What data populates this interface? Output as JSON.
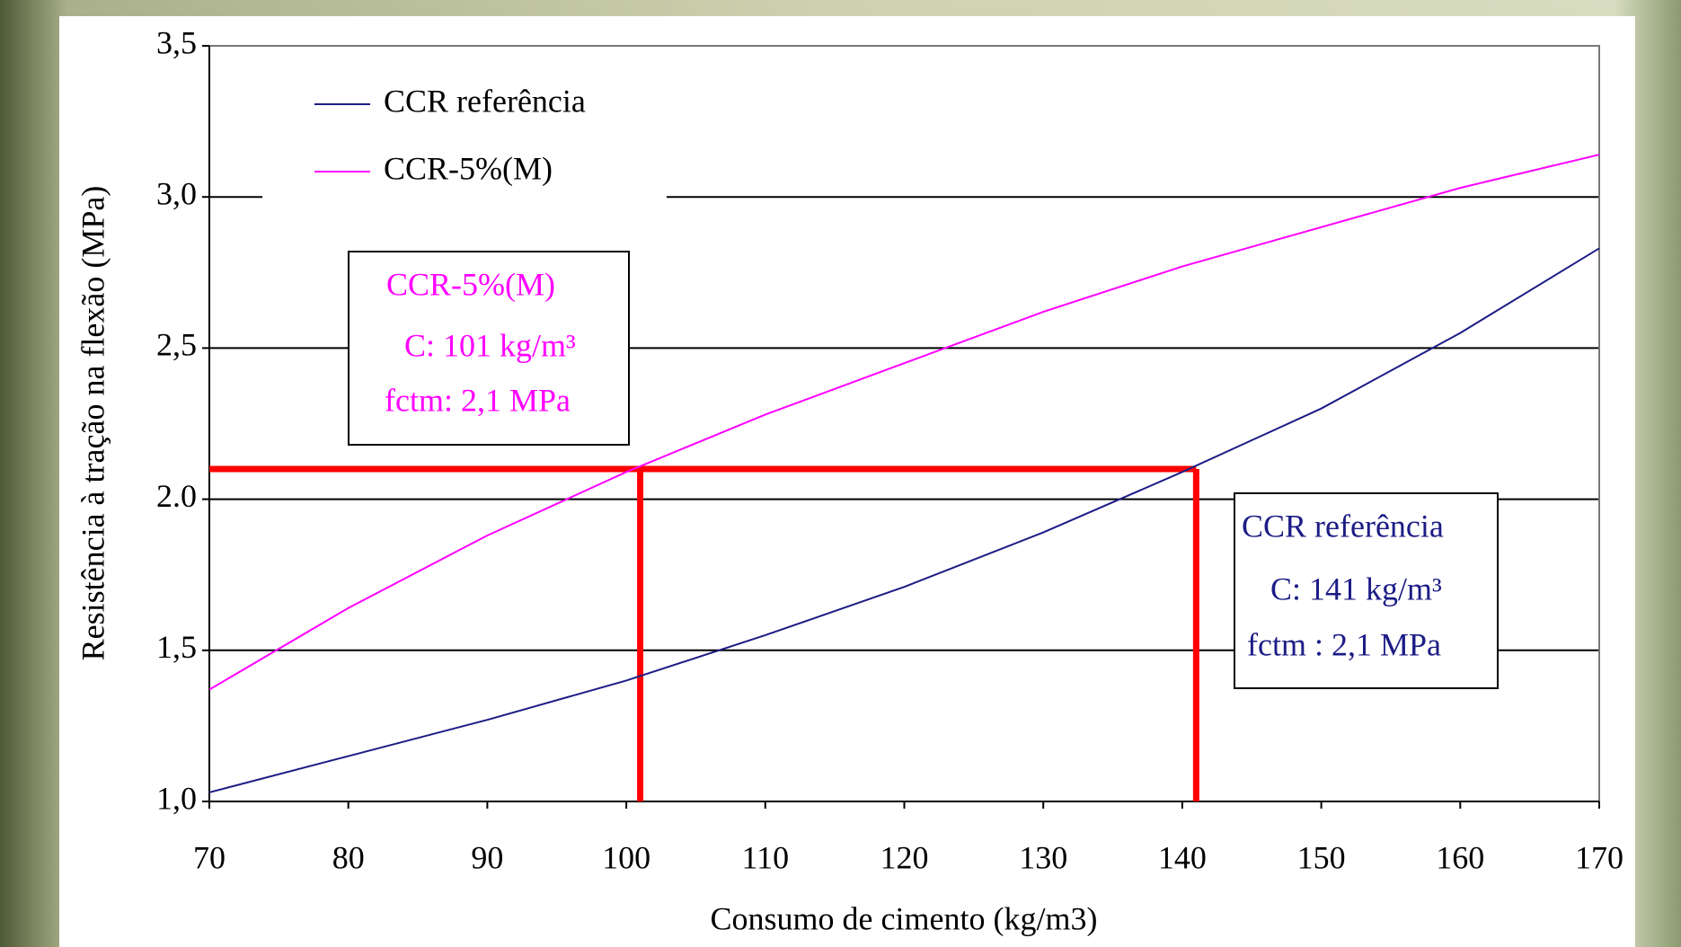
{
  "chart_data": {
    "type": "line",
    "xlabel": "Consumo de cimento (kg/m3)",
    "ylabel": "Resistência à tração na flexão (MPa)",
    "x": [
      70,
      80,
      90,
      100,
      110,
      120,
      130,
      140,
      150,
      160,
      170
    ],
    "series": [
      {
        "name": "CCR referência",
        "color": "#1c1c86",
        "values": [
          1.03,
          1.15,
          1.27,
          1.4,
          1.55,
          1.71,
          1.89,
          2.09,
          2.3,
          2.55,
          2.83
        ]
      },
      {
        "name": "CCR-5%(M)",
        "color": "#ff00ff",
        "values": [
          1.37,
          1.64,
          1.88,
          2.09,
          2.28,
          2.45,
          2.62,
          2.77,
          2.9,
          3.03,
          3.14
        ]
      }
    ],
    "xlim": [
      70,
      170
    ],
    "xticks": [
      70,
      80,
      90,
      100,
      110,
      120,
      130,
      140,
      150,
      160,
      170
    ],
    "ylim": [
      1,
      3.5
    ],
    "yticks": [
      {
        "value": 1,
        "label": "1,0"
      },
      {
        "value": 1.5,
        "label": "1,5"
      },
      {
        "value": 2,
        "label": "2.0"
      },
      {
        "value": 2.5,
        "label": "2,5"
      },
      {
        "value": 3,
        "label": "3,0"
      },
      {
        "value": 3.5,
        "label": "3,5"
      }
    ],
    "grid": true,
    "legend": "upper left",
    "reference_lines": {
      "color": "#ff0000",
      "y": 2.1,
      "x": [
        101,
        141
      ]
    },
    "annotations": [
      {
        "color": "#ff00ff",
        "lines": [
          "CCR-5%(M)",
          "C:  101 kg/m³",
          "fctm:  2,1 MPa"
        ]
      },
      {
        "color": "#1c1c86",
        "lines": [
          "CCR  referência",
          "C:  141 kg/m³",
          "fctm :  2,1 MPa"
        ]
      }
    ]
  }
}
